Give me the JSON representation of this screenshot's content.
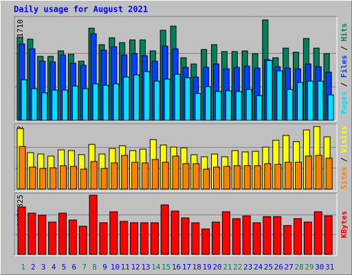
{
  "chart_data": [
    {
      "type": "bar",
      "title": "Daily usage for August 2021",
      "ylim": [
        0,
        11710
      ],
      "yticks": [
        11710
      ],
      "ylabel_separator": " / ",
      "series": [
        {
          "name": "Hits",
          "color": "#00805c",
          "values": [
            9704,
            9464,
            7459,
            7459,
            8100,
            7699,
            6897,
            10747,
            8822,
            9624,
            9063,
            9383,
            9383,
            8100,
            10506,
            10987,
            7298,
            6576,
            8261,
            8822,
            8020,
            8020,
            8100,
            7779,
            11710,
            7298,
            8421,
            7940,
            9544,
            8421,
            7779
          ]
        },
        {
          "name": "Files",
          "color": "#0040ff",
          "values": [
            8902,
            8341,
            6897,
            6817,
            7619,
            6657,
            6416,
            10105,
            8180,
            8581,
            7619,
            7779,
            7539,
            6897,
            8662,
            8341,
            6175,
            5053,
            6175,
            6576,
            6015,
            6175,
            6336,
            6095,
            7058,
            6256,
            6095,
            6015,
            6576,
            6256,
            5614
          ]
        },
        {
          "name": "Pages",
          "color": "#00e0ff",
          "values": [
            4732,
            3689,
            3208,
            3529,
            3529,
            4010,
            3689,
            4251,
            4090,
            4251,
            5053,
            5293,
            5694,
            4571,
            4812,
            5373,
            4972,
            3128,
            3930,
            3368,
            3449,
            3368,
            3609,
            2887,
            6977,
            5774,
            3609,
            4411,
            4571,
            4571,
            2967
          ]
        }
      ]
    },
    {
      "type": "bar",
      "ylim": [
        0,
        982
      ],
      "yticks": [
        982
      ],
      "ylabel_separator": " / ",
      "series": [
        {
          "name": "Visits",
          "color": "#ffff00",
          "values": [
            950,
            572,
            550,
            518,
            615,
            604,
            540,
            701,
            550,
            637,
            680,
            604,
            626,
            777,
            691,
            658,
            647,
            540,
            507,
            550,
            507,
            604,
            583,
            593,
            658,
            766,
            842,
            745,
            928,
            982,
            820
          ]
        },
        {
          "name": "Sites",
          "color": "#ff8000",
          "values": [
            669,
            345,
            324,
            334,
            367,
            356,
            313,
            432,
            324,
            410,
            529,
            421,
            410,
            464,
            421,
            518,
            399,
            399,
            313,
            345,
            356,
            367,
            367,
            367,
            399,
            388,
            421,
            421,
            518,
            529,
            486
          ]
        }
      ]
    },
    {
      "type": "bar",
      "ylim": [
        0,
        2173825
      ],
      "yticks": [
        2173825
      ],
      "categories": [
        "1",
        "2",
        "3",
        "4",
        "5",
        "6",
        "7",
        "8",
        "9",
        "10",
        "11",
        "12",
        "13",
        "14",
        "15",
        "16",
        "17",
        "18",
        "19",
        "20",
        "21",
        "22",
        "23",
        "24",
        "25",
        "26",
        "27",
        "28",
        "29",
        "30",
        "31"
      ],
      "category_colors": [
        "#00805c",
        "#0000ff",
        "#0000ff",
        "#0000ff",
        "#0000ff",
        "#0000ff",
        "#00805c",
        "#00805c",
        "#0000ff",
        "#0000ff",
        "#0000ff",
        "#0000ff",
        "#0000ff",
        "#00805c",
        "#00805c",
        "#0000ff",
        "#0000ff",
        "#0000ff",
        "#0000ff",
        "#0000ff",
        "#00805c",
        "#00805c",
        "#0000ff",
        "#0000ff",
        "#0000ff",
        "#0000ff",
        "#0000ff",
        "#00805c",
        "#00805c",
        "#0000ff",
        "#0000ff"
      ],
      "series": [
        {
          "name": "KBytes",
          "color": "#ff0000",
          "values": [
            1744113,
            1516620,
            1440789,
            1188019,
            1516620,
            1263850,
            1036357,
            2173825,
            1162742,
            1567174,
            1213296,
            1162742,
            1162742,
            1162742,
            1819944,
            1592451,
            1339681,
            1162742,
            935249,
            1188019,
            1567174,
            1314404,
            1415512,
            1162742,
            1390235,
            1390235,
            1061634,
            1314404,
            1188019,
            1567174,
            1415512
          ]
        }
      ]
    }
  ]
}
